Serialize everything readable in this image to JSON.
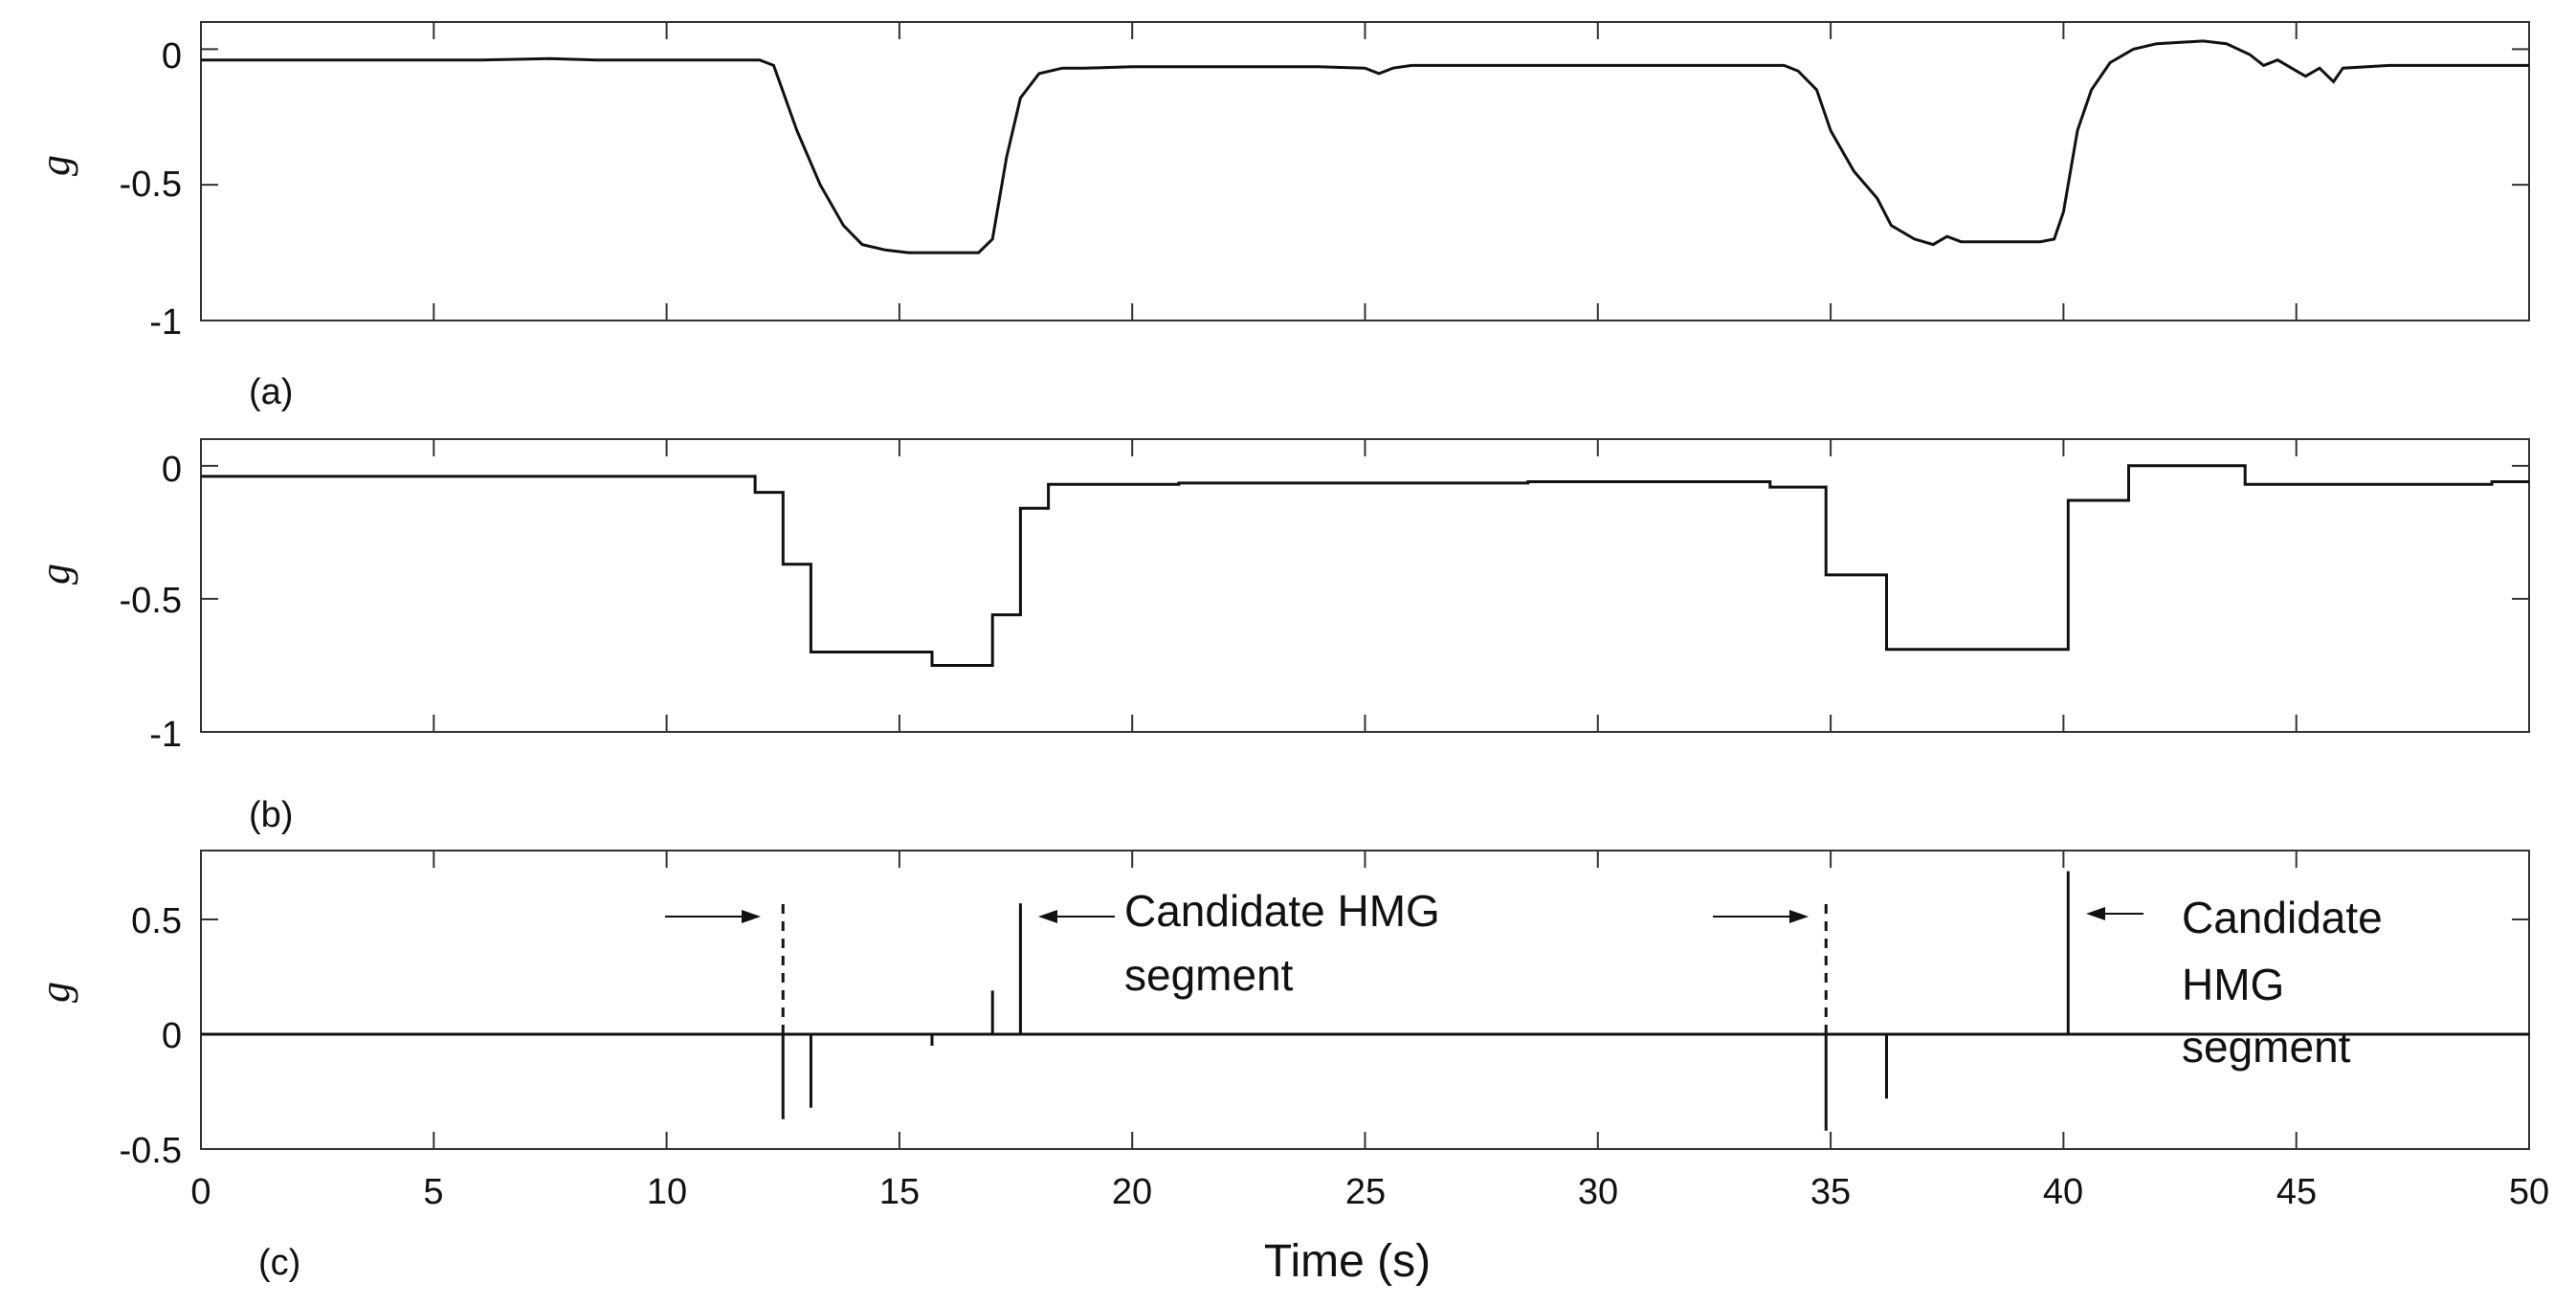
{
  "chart_data": [
    {
      "type": "line",
      "panel_label": "(a)",
      "ylabel": "g",
      "xlabel": "",
      "xlim": [
        0,
        50
      ],
      "ylim": [
        -1,
        0.1
      ],
      "yticks": [
        0,
        -0.5,
        -1
      ],
      "ytick_labels": [
        "0",
        "-0.5",
        "-1"
      ],
      "grid": false,
      "series": [
        {
          "x": [
            0,
            2,
            4,
            6,
            7.5,
            8.5,
            10,
            11.5,
            12,
            12.3,
            12.8,
            13.3,
            13.8,
            14.2,
            14.7,
            15.2,
            16,
            16.7,
            17.0,
            17.3,
            17.6,
            18,
            18.5,
            19,
            20,
            22,
            24,
            25,
            25.3,
            25.6,
            26,
            28,
            30,
            32,
            33,
            34,
            34.3,
            34.7,
            35,
            35.5,
            36,
            36.3,
            36.8,
            37.2,
            37.5,
            37.8,
            38.5,
            39.5,
            39.8,
            40.0,
            40.3,
            40.6,
            41,
            41.5,
            42,
            43,
            43.5,
            44,
            44.3,
            44.6,
            45,
            45.2,
            45.5,
            45.8,
            46,
            47,
            48,
            49,
            50
          ],
          "y": [
            -0.04,
            -0.04,
            -0.04,
            -0.04,
            -0.035,
            -0.04,
            -0.04,
            -0.04,
            -0.04,
            -0.06,
            -0.3,
            -0.5,
            -0.65,
            -0.72,
            -0.74,
            -0.75,
            -0.75,
            -0.75,
            -0.7,
            -0.4,
            -0.18,
            -0.09,
            -0.07,
            -0.07,
            -0.065,
            -0.065,
            -0.065,
            -0.07,
            -0.09,
            -0.07,
            -0.06,
            -0.06,
            -0.06,
            -0.06,
            -0.06,
            -0.06,
            -0.08,
            -0.15,
            -0.3,
            -0.45,
            -0.55,
            -0.65,
            -0.7,
            -0.72,
            -0.69,
            -0.71,
            -0.71,
            -0.71,
            -0.7,
            -0.6,
            -0.3,
            -0.15,
            -0.05,
            0.0,
            0.02,
            0.03,
            0.02,
            -0.02,
            -0.06,
            -0.04,
            -0.08,
            -0.1,
            -0.07,
            -0.12,
            -0.07,
            -0.06,
            -0.06,
            -0.06,
            -0.06
          ]
        }
      ]
    },
    {
      "type": "line",
      "panel_label": "(b)",
      "ylabel": "g",
      "xlabel": "",
      "xlim": [
        0,
        50
      ],
      "ylim": [
        -1,
        0.1
      ],
      "yticks": [
        0,
        -0.5,
        -1
      ],
      "ytick_labels": [
        "0",
        "-0.5",
        "-1"
      ],
      "grid": false,
      "series": [
        {
          "step": true,
          "x": [
            0,
            11.9,
            12.5,
            13.1,
            15.7,
            17.0,
            17.6,
            18.2,
            21,
            28.5,
            33.7,
            34.9,
            36.2,
            40.1,
            41.4,
            43.9,
            49.2,
            50
          ],
          "y": [
            -0.04,
            -0.1,
            -0.37,
            -0.7,
            -0.75,
            -0.56,
            -0.16,
            -0.07,
            -0.065,
            -0.06,
            -0.08,
            -0.41,
            -0.69,
            -0.13,
            0.0,
            -0.07,
            -0.06,
            -0.06
          ]
        }
      ]
    },
    {
      "type": "line",
      "panel_label": "(c)",
      "ylabel": "g",
      "xlabel": "Time (s)",
      "xlim": [
        0,
        50
      ],
      "ylim": [
        -0.5,
        0.8
      ],
      "yticks": [
        0.5,
        0,
        -0.5
      ],
      "ytick_labels": [
        "0.5",
        "0",
        "-0.5"
      ],
      "xticks": [
        0,
        5,
        10,
        15,
        20,
        25,
        30,
        35,
        40,
        45,
        50
      ],
      "xtick_labels": [
        "0",
        "5",
        "10",
        "15",
        "20",
        "25",
        "30",
        "35",
        "40",
        "45",
        "50"
      ],
      "grid": false,
      "baseline": 0,
      "spikes": [
        {
          "x": 12.5,
          "y": 0.57,
          "style": "dashed"
        },
        {
          "x": 12.5,
          "y": -0.37,
          "style": "solid"
        },
        {
          "x": 13.1,
          "y": -0.32,
          "style": "solid"
        },
        {
          "x": 15.7,
          "y": -0.05,
          "style": "solid"
        },
        {
          "x": 17.0,
          "y": 0.19,
          "style": "solid"
        },
        {
          "x": 17.6,
          "y": 0.57,
          "style": "solid"
        },
        {
          "x": 34.9,
          "y": 0.57,
          "style": "dashed"
        },
        {
          "x": 34.9,
          "y": -0.42,
          "style": "solid"
        },
        {
          "x": 36.2,
          "y": -0.28,
          "style": "solid"
        },
        {
          "x": 40.1,
          "y": 0.71,
          "style": "solid"
        }
      ],
      "annotations": [
        {
          "lines": [
            "Candidate HMG",
            "segment"
          ]
        },
        {
          "lines": [
            "Candidate",
            "HMG",
            "segment"
          ]
        }
      ]
    }
  ]
}
